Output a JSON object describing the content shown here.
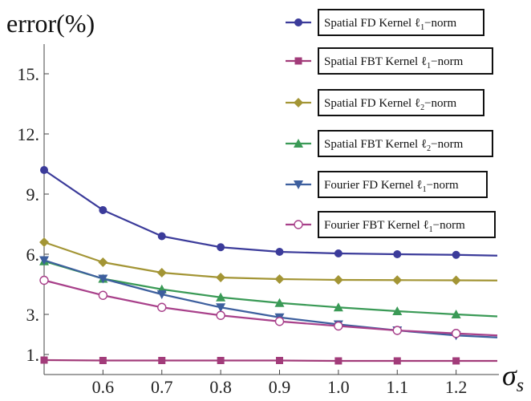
{
  "chart_data": {
    "type": "line",
    "ylabel": "error(%)",
    "xlabel": "σ_s",
    "x": [
      0.5,
      0.6,
      0.7,
      0.8,
      0.9,
      1.0,
      1.1,
      1.2,
      1.27
    ],
    "xlim": [
      0.5,
      1.27
    ],
    "ylim": [
      0,
      17
    ],
    "xticks": [
      "0.6",
      "0.7",
      "0.8",
      "0.9",
      "1.0",
      "1.1",
      "1.2"
    ],
    "xtick_values": [
      0.6,
      0.7,
      0.8,
      0.9,
      1.0,
      1.1,
      1.2
    ],
    "yticks": [
      "1.",
      "3.",
      "6.",
      "9.",
      "12.",
      "15."
    ],
    "ytick_values": [
      1,
      3,
      6,
      9,
      12,
      15
    ],
    "legend_position": "right",
    "series": [
      {
        "name": "Spatial FD Kernel ℓ1−norm",
        "name_main": "Spatial FD Kernel ℓ",
        "name_sub": "1",
        "name_tail": "−norm",
        "marker": "circle",
        "color": "#3b3b9a",
        "values": [
          10.2,
          8.2,
          6.9,
          6.35,
          6.12,
          6.04,
          6.0,
          5.97,
          5.93
        ]
      },
      {
        "name": "Spatial FBT Kernel ℓ1−norm",
        "name_main": "Spatial FBT Kernel ℓ",
        "name_sub": "1",
        "name_tail": "−norm",
        "marker": "square",
        "color": "#a23c7a",
        "values": [
          0.72,
          0.7,
          0.7,
          0.7,
          0.7,
          0.68,
          0.68,
          0.68,
          0.68
        ]
      },
      {
        "name": "Spatial FD Kernel ℓ2−norm",
        "name_main": "Spatial FD Kernel ℓ",
        "name_sub": "2",
        "name_tail": "−norm",
        "marker": "diamond",
        "color": "#a39535",
        "values": [
          6.6,
          5.6,
          5.08,
          4.84,
          4.76,
          4.72,
          4.71,
          4.7,
          4.69
        ]
      },
      {
        "name": "Spatial FBT Kernel ℓ2−norm",
        "name_main": "Spatial FBT Kernel ℓ",
        "name_sub": "2",
        "name_tail": "−norm",
        "marker": "triangle-up",
        "color": "#3a9a56",
        "values": [
          5.65,
          4.78,
          4.25,
          3.85,
          3.57,
          3.35,
          3.16,
          3.0,
          2.9
        ]
      },
      {
        "name": "Fourier FD Kernel ℓ1−norm",
        "name_main": "Fourier FD Kernel ℓ",
        "name_sub": "1",
        "name_tail": "−norm",
        "marker": "triangle-down",
        "color": "#3d5f9e",
        "values": [
          5.7,
          4.78,
          4.0,
          3.35,
          2.85,
          2.5,
          2.2,
          1.95,
          1.85
        ]
      },
      {
        "name": "Fourier FBT Kernel ℓ1−norm",
        "name_main": "Fourier FBT Kernel ℓ",
        "name_sub": "1",
        "name_tail": "−norm",
        "marker": "open-circle",
        "color": "#a8408a",
        "values": [
          4.7,
          3.95,
          3.35,
          2.95,
          2.65,
          2.42,
          2.2,
          2.05,
          1.95
        ]
      }
    ]
  }
}
